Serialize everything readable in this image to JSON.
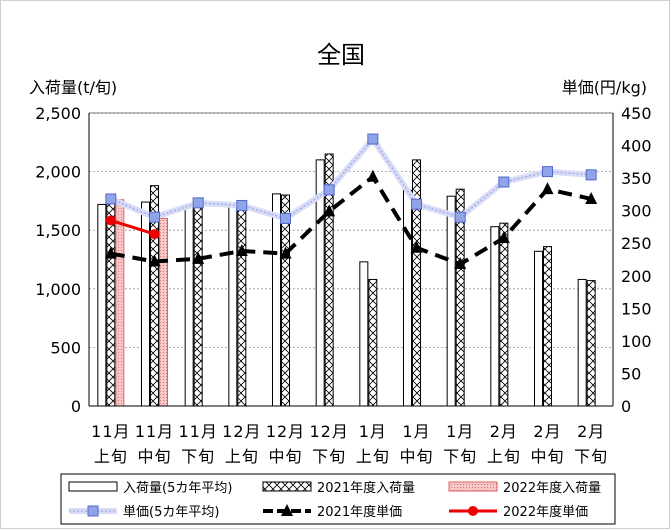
{
  "chart_data": {
    "type": "bar+line",
    "title": "全国",
    "ylabel_left": "入荷量(t/旬)",
    "ylabel_right": "単価(円/kg)",
    "ylim_left": [
      0,
      2500
    ],
    "ylim_right": [
      0,
      450
    ],
    "yticks_left": [
      "0",
      "500",
      "1,000",
      "1,500",
      "2,000",
      "2,500"
    ],
    "yticks_right": [
      "0",
      "50",
      "100",
      "150",
      "200",
      "250",
      "300",
      "350",
      "400",
      "450"
    ],
    "grid": true,
    "legend_position": "bottom",
    "categories": [
      {
        "line1": "11月",
        "line2": "上旬"
      },
      {
        "line1": "11月",
        "line2": "中旬"
      },
      {
        "line1": "11月",
        "line2": "下旬"
      },
      {
        "line1": "12月",
        "line2": "上旬"
      },
      {
        "line1": "12月",
        "line2": "中旬"
      },
      {
        "line1": "12月",
        "line2": "下旬"
      },
      {
        "line1": "1月",
        "line2": "上旬"
      },
      {
        "line1": "1月",
        "line2": "中旬"
      },
      {
        "line1": "1月",
        "line2": "下旬"
      },
      {
        "line1": "2月",
        "line2": "上旬"
      },
      {
        "line1": "2月",
        "line2": "中旬"
      },
      {
        "line1": "2月",
        "line2": "下旬"
      }
    ],
    "bar_series": [
      {
        "name": "入荷量(5カ年平均)",
        "axis": "left",
        "values": [
          1720,
          1740,
          1700,
          1720,
          1810,
          2100,
          1230,
          1840,
          1790,
          1530,
          1320,
          1080
        ]
      },
      {
        "name": "2021年度入荷量",
        "axis": "left",
        "values": [
          1750,
          1880,
          1700,
          1700,
          1800,
          2150,
          1080,
          2100,
          1850,
          1560,
          1360,
          1070
        ]
      },
      {
        "name": "2022年度入荷量",
        "axis": "left",
        "values": [
          1760,
          1600,
          null,
          null,
          null,
          null,
          null,
          null,
          null,
          null,
          null,
          null
        ]
      }
    ],
    "line_series": [
      {
        "name": "単価(5カ年平均)",
        "axis": "right",
        "values": [
          318,
          290,
          312,
          308,
          288,
          332,
          410,
          310,
          290,
          344,
          360,
          355
        ]
      },
      {
        "name": "2021年度単価",
        "axis": "right",
        "values": [
          234,
          222,
          226,
          238,
          234,
          299,
          352,
          243,
          218,
          258,
          333,
          318
        ]
      },
      {
        "name": "2022年度単価",
        "axis": "right",
        "values": [
          285,
          264,
          null,
          null,
          null,
          null,
          null,
          null,
          null,
          null,
          null,
          null
        ]
      }
    ],
    "colors": {
      "avg_bar_fill": "#ffffff",
      "bar_stroke": "#000000",
      "y2022_bar_fill": "#f6c8c8",
      "y2022_bar_stroke": "#e06060",
      "avg_price_line": "#b8c0ee",
      "avg_price_marker": "#8fa5e8",
      "price_2021": "#000000",
      "price_2022": "#ee0000",
      "grid": "#999999"
    }
  }
}
